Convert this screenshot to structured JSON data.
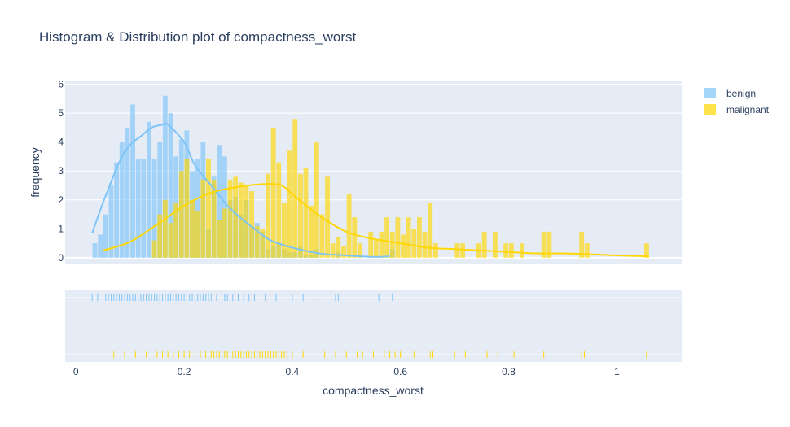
{
  "chart_data": {
    "type": "bar",
    "title": "Histogram & Distribution plot of compactness_worst",
    "xlabel": "compactness_worst",
    "ylabel": "frequency",
    "xlim": [
      -0.02,
      1.12
    ],
    "ylim": [
      -0.2,
      6.1
    ],
    "xticks": [
      "0",
      "0.2",
      "0.4",
      "0.6",
      "0.8",
      "1"
    ],
    "xtick_values": [
      0,
      0.2,
      0.4,
      0.6,
      0.8,
      1.0
    ],
    "yticks": [
      "0",
      "1",
      "2",
      "3",
      "4",
      "5",
      "6"
    ],
    "ytick_values": [
      0,
      1,
      2,
      3,
      4,
      5,
      6
    ],
    "bin_width": 0.01,
    "grid": true,
    "legend_position": "top-right",
    "colors": {
      "benign": "#7ec4f7",
      "malignant": "#ffd700",
      "plot_bg": "#e5ecf6",
      "grid": "#ffffff",
      "text": "#2a3f5f"
    },
    "series": [
      {
        "name": "benign",
        "color": "#7ec4f7",
        "bins_x": [
          0.035,
          0.045,
          0.055,
          0.065,
          0.075,
          0.085,
          0.095,
          0.105,
          0.115,
          0.125,
          0.135,
          0.145,
          0.155,
          0.165,
          0.175,
          0.185,
          0.195,
          0.205,
          0.215,
          0.225,
          0.235,
          0.245,
          0.255,
          0.265,
          0.275,
          0.285,
          0.295,
          0.305,
          0.315,
          0.325,
          0.335,
          0.345,
          0.355,
          0.365,
          0.375,
          0.385,
          0.395,
          0.405,
          0.415,
          0.425,
          0.435,
          0.445,
          0.485,
          0.585
        ],
        "bins_y": [
          0.5,
          0.8,
          1.5,
          2.5,
          3.3,
          4.0,
          4.5,
          5.3,
          3.4,
          3.4,
          4.7,
          3.4,
          4.0,
          5.6,
          5.0,
          3.5,
          4.1,
          4.4,
          3.0,
          3.4,
          4.0,
          1.0,
          2.8,
          3.9,
          3.5,
          2.0,
          2.1,
          1.5,
          2.0,
          1.1,
          1.2,
          0.9,
          0.3,
          0.4,
          0.5,
          0.3,
          0.2,
          0.2,
          0.4,
          0.1,
          0.1,
          0.3,
          0.2,
          0.3
        ],
        "kde_x": [
          0.03,
          0.05,
          0.08,
          0.1,
          0.12,
          0.14,
          0.16,
          0.17,
          0.2,
          0.22,
          0.25,
          0.28,
          0.3,
          0.33,
          0.36,
          0.4,
          0.45,
          0.5,
          0.55,
          0.58
        ],
        "kde_y": [
          0.85,
          1.9,
          3.3,
          3.9,
          4.2,
          4.5,
          4.6,
          4.6,
          4.0,
          3.2,
          2.5,
          1.8,
          1.45,
          1.0,
          0.6,
          0.35,
          0.15,
          0.08,
          0.03,
          0.05
        ],
        "rug": [
          0.03,
          0.04,
          0.05,
          0.055,
          0.06,
          0.065,
          0.07,
          0.075,
          0.08,
          0.085,
          0.09,
          0.095,
          0.1,
          0.105,
          0.11,
          0.115,
          0.12,
          0.125,
          0.13,
          0.135,
          0.14,
          0.145,
          0.15,
          0.155,
          0.16,
          0.165,
          0.17,
          0.175,
          0.18,
          0.185,
          0.19,
          0.195,
          0.2,
          0.205,
          0.21,
          0.215,
          0.22,
          0.225,
          0.23,
          0.235,
          0.24,
          0.245,
          0.25,
          0.26,
          0.27,
          0.275,
          0.28,
          0.29,
          0.3,
          0.31,
          0.32,
          0.33,
          0.35,
          0.37,
          0.4,
          0.42,
          0.44,
          0.48,
          0.485,
          0.56,
          0.585
        ]
      },
      {
        "name": "malignant",
        "color": "#ffd700",
        "bins_x": [
          0.145,
          0.155,
          0.165,
          0.175,
          0.185,
          0.195,
          0.205,
          0.215,
          0.225,
          0.235,
          0.245,
          0.255,
          0.265,
          0.275,
          0.285,
          0.295,
          0.305,
          0.315,
          0.325,
          0.335,
          0.345,
          0.355,
          0.365,
          0.375,
          0.385,
          0.395,
          0.405,
          0.415,
          0.425,
          0.435,
          0.445,
          0.455,
          0.465,
          0.475,
          0.485,
          0.495,
          0.505,
          0.515,
          0.525,
          0.545,
          0.555,
          0.565,
          0.575,
          0.585,
          0.595,
          0.605,
          0.615,
          0.625,
          0.635,
          0.645,
          0.655,
          0.665,
          0.705,
          0.715,
          0.745,
          0.755,
          0.775,
          0.795,
          0.805,
          0.825,
          0.865,
          0.875,
          0.935,
          0.945,
          1.055
        ],
        "bins_y": [
          0.6,
          1.5,
          2.0,
          1.2,
          1.9,
          3.0,
          3.4,
          2.0,
          1.6,
          2.7,
          3.4,
          2.7,
          1.3,
          1.7,
          2.7,
          2.8,
          2.6,
          2.5,
          2.3,
          1.1,
          1.0,
          2.9,
          4.5,
          3.3,
          1.9,
          3.7,
          4.8,
          2.9,
          3.1,
          1.8,
          4.0,
          1.5,
          2.8,
          0.5,
          0.7,
          0.4,
          2.2,
          1.4,
          0.5,
          0.9,
          0.6,
          0.9,
          1.4,
          0.9,
          1.4,
          0.8,
          1.4,
          1.0,
          1.4,
          0.9,
          1.9,
          0.5,
          0.5,
          0.5,
          0.5,
          0.9,
          0.9,
          0.5,
          0.5,
          0.5,
          0.9,
          0.9,
          0.9,
          0.5,
          0.5
        ],
        "kde_x": [
          0.05,
          0.1,
          0.15,
          0.2,
          0.25,
          0.3,
          0.35,
          0.38,
          0.4,
          0.45,
          0.5,
          0.55,
          0.6,
          0.65,
          0.7,
          0.75,
          0.8,
          0.85,
          0.9,
          0.95,
          1.0,
          1.06
        ],
        "kde_y": [
          0.25,
          0.55,
          1.15,
          1.8,
          2.25,
          2.45,
          2.55,
          2.5,
          2.2,
          1.45,
          0.9,
          0.65,
          0.5,
          0.35,
          0.3,
          0.25,
          0.2,
          0.15,
          0.15,
          0.12,
          0.08,
          0.05
        ],
        "rug": [
          0.05,
          0.07,
          0.09,
          0.11,
          0.13,
          0.15,
          0.16,
          0.17,
          0.18,
          0.19,
          0.2,
          0.21,
          0.22,
          0.23,
          0.24,
          0.25,
          0.255,
          0.26,
          0.265,
          0.27,
          0.275,
          0.28,
          0.285,
          0.29,
          0.295,
          0.3,
          0.305,
          0.31,
          0.315,
          0.32,
          0.325,
          0.33,
          0.335,
          0.34,
          0.345,
          0.35,
          0.355,
          0.36,
          0.365,
          0.37,
          0.375,
          0.38,
          0.385,
          0.39,
          0.4,
          0.42,
          0.44,
          0.46,
          0.48,
          0.5,
          0.52,
          0.53,
          0.55,
          0.57,
          0.58,
          0.59,
          0.6,
          0.625,
          0.655,
          0.66,
          0.7,
          0.72,
          0.76,
          0.78,
          0.81,
          0.865,
          0.935,
          0.94,
          1.055
        ]
      }
    ]
  }
}
